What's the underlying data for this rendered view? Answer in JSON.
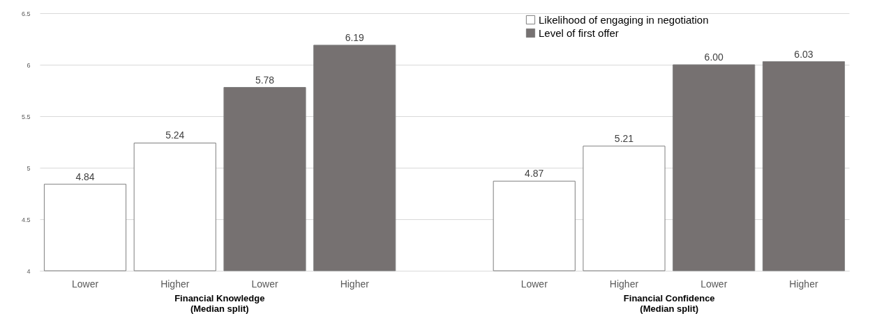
{
  "chart_data": {
    "type": "bar",
    "categories": [
      "Lower",
      "Higher",
      "Lower",
      "Higher",
      null,
      "Lower",
      "Higher",
      "Lower",
      "Higher"
    ],
    "series": [
      {
        "name": "Likelihood of engaging in negotiation",
        "color": "#ffffff",
        "values": [
          4.84,
          5.24,
          null,
          null,
          null,
          4.87,
          5.21,
          null,
          null
        ],
        "value_labels": [
          "4.84",
          "5.24",
          null,
          null,
          null,
          "4.87",
          "5.21",
          null,
          null
        ]
      },
      {
        "name": "Level of first offer",
        "color": "#767171",
        "values": [
          null,
          null,
          5.78,
          6.19,
          null,
          null,
          null,
          6.0,
          6.03
        ],
        "value_labels": [
          null,
          null,
          "5.78",
          "6.19",
          null,
          null,
          null,
          "6.00",
          "6.03"
        ]
      }
    ],
    "annotations": [
      "Financial Knowledge\n(Median split)",
      "Financial Confidence\n(Median split)"
    ],
    "ylim": [
      4,
      6.5
    ],
    "yticks": [
      4,
      4.5,
      5,
      5.5,
      6,
      6.5
    ],
    "grid": "y",
    "legend": "top right"
  }
}
